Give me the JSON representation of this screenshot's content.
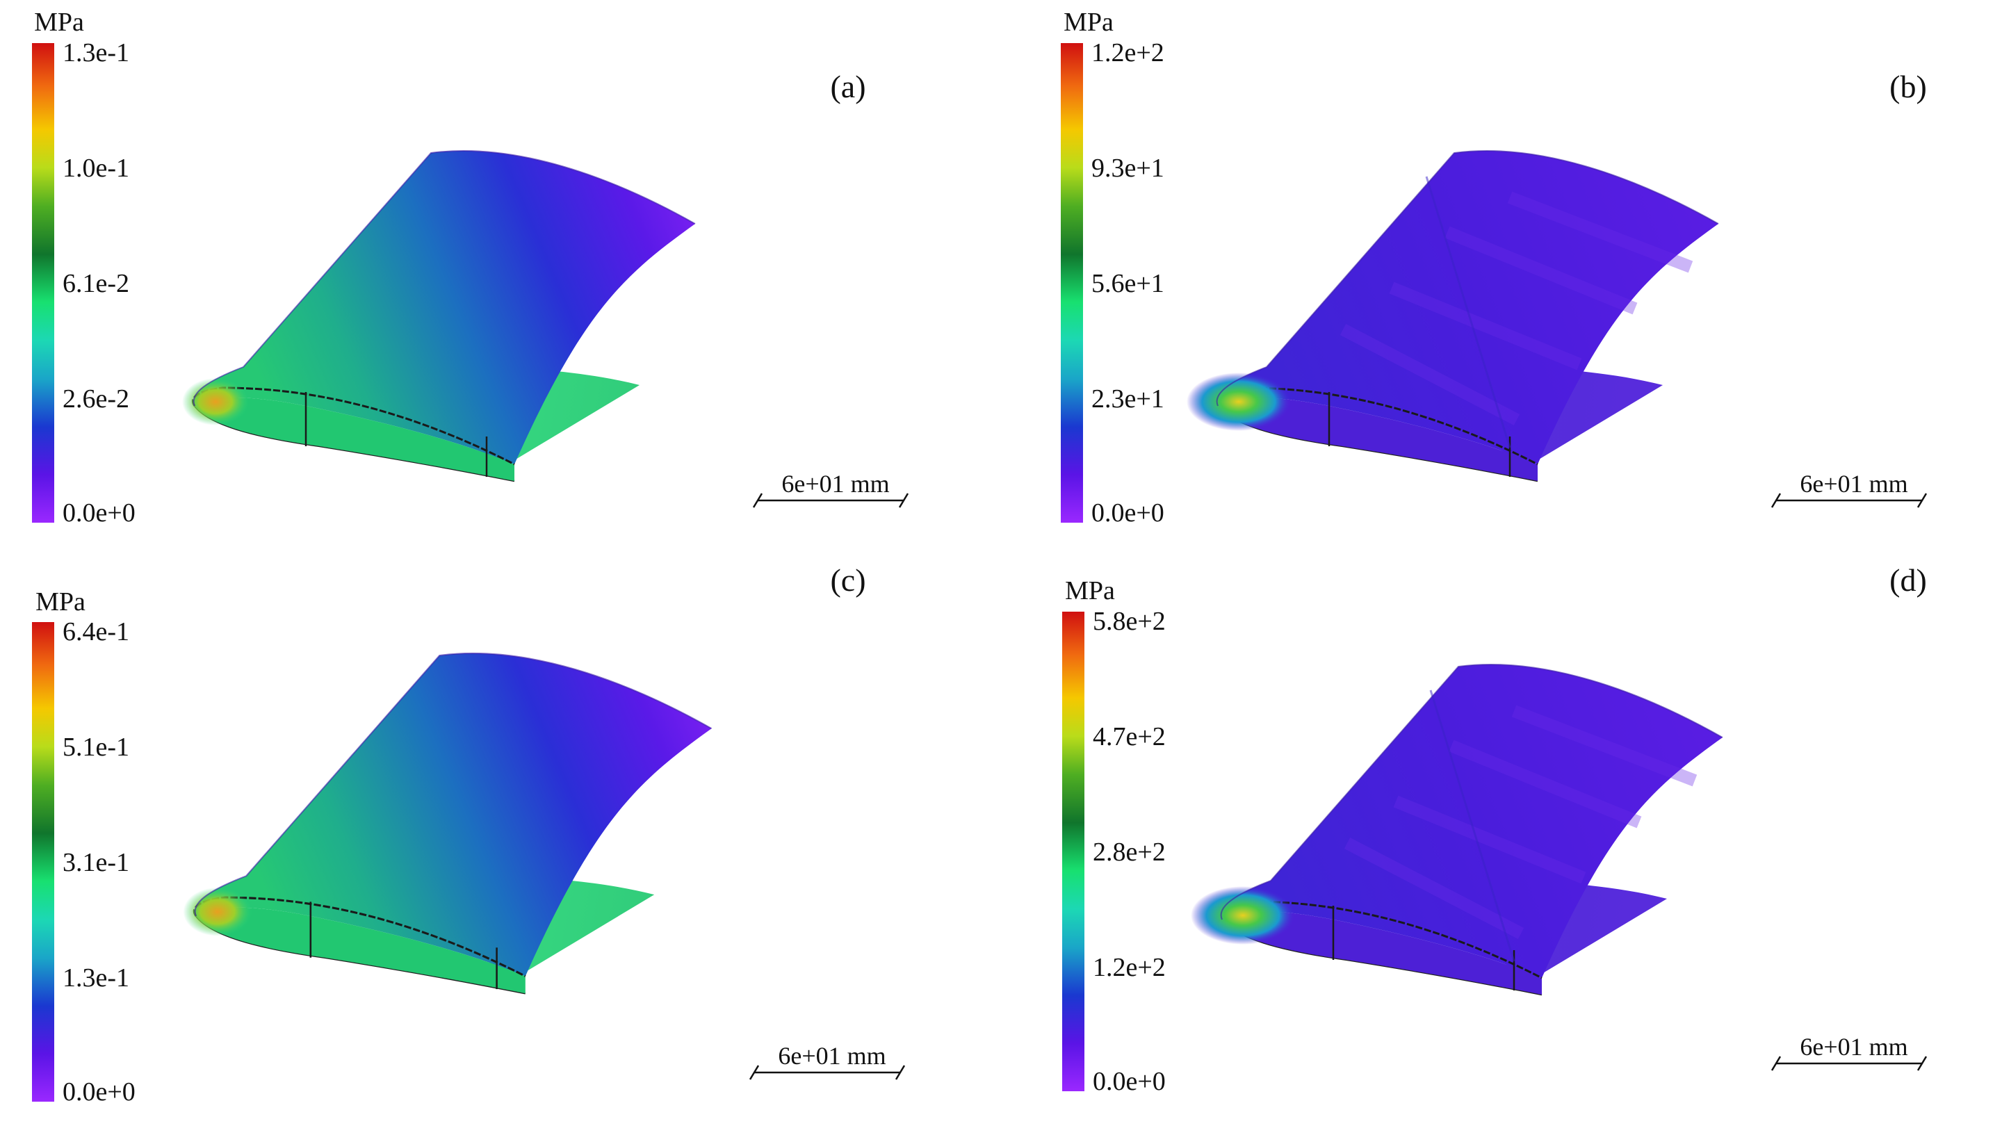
{
  "panels": [
    {
      "id": "a",
      "label": "(a)",
      "unit": "MPa",
      "ticks": [
        "1.3e-1",
        "1.0e-1",
        "6.1e-2",
        "2.6e-2",
        "0.0e+0"
      ],
      "scale_text": "6e+01 mm",
      "field": "smooth"
    },
    {
      "id": "b",
      "label": "(b)",
      "unit": "MPa",
      "ticks": [
        "1.2e+2",
        "9.3e+1",
        "5.6e+1",
        "2.3e+1",
        "0.0e+0"
      ],
      "scale_text": "6e+01 mm",
      "field": "patchy"
    },
    {
      "id": "c",
      "label": "(c)",
      "unit": "MPa",
      "ticks": [
        "6.4e-1",
        "5.1e-1",
        "3.1e-1",
        "1.3e-1",
        "0.0e+0"
      ],
      "scale_text": "6e+01 mm",
      "field": "smooth"
    },
    {
      "id": "d",
      "label": "(d)",
      "unit": "MPa",
      "ticks": [
        "5.8e+2",
        "4.7e+2",
        "2.8e+2",
        "1.2e+2",
        "0.0e+0"
      ],
      "scale_text": "6e+01 mm",
      "field": "patchy"
    }
  ],
  "colormap": [
    "#d01010",
    "#f06a10",
    "#f5c800",
    "#b9dc1a",
    "#4fae22",
    "#10752c",
    "#18e070",
    "#1cd8b4",
    "#1aa6c8",
    "#1a38d0",
    "#5a14e6",
    "#9a28ff"
  ],
  "colors": {
    "smooth_root": "#21d77a",
    "smooth_mid": "#1f4fc9",
    "smooth_tip": "#7e1ef0",
    "patchy_base": "#4f1ad9",
    "patchy_light": "#6a1fe6",
    "leading_edge_hot": "#f0c820"
  }
}
